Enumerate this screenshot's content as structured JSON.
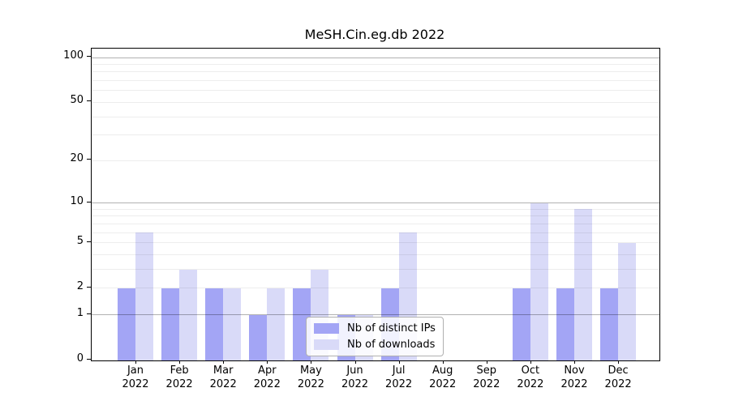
{
  "chart_data": {
    "type": "bar",
    "title": "MeSH.Cin.eg.db 2022",
    "categories": [
      "Jan",
      "Feb",
      "Mar",
      "Apr",
      "May",
      "Jun",
      "Jul",
      "Aug",
      "Sep",
      "Oct",
      "Nov",
      "Dec"
    ],
    "x_tick_year": "2022",
    "series": [
      {
        "name": "Nb of distinct IPs",
        "color": "#a3a5f5",
        "values": [
          2,
          2,
          2,
          1,
          2,
          1,
          2,
          0,
          0,
          2,
          2,
          2
        ]
      },
      {
        "name": "Nb of downloads",
        "color": "#d9daf8",
        "values": [
          6,
          3,
          2,
          2,
          3,
          1,
          6,
          0,
          0,
          10,
          9,
          5
        ]
      }
    ],
    "xlabel": "",
    "ylabel": "",
    "y_scale": "log1p",
    "y_ticks": [
      0,
      1,
      2,
      5,
      10,
      20,
      50,
      100
    ],
    "y_major_gridlines": [
      1,
      10,
      100
    ],
    "y_minor_gridlines": [
      3,
      4,
      6,
      7,
      8,
      9,
      30,
      40,
      60,
      70,
      80,
      90
    ],
    "ylim": [
      0,
      113
    ],
    "grid": "horizontal",
    "legend_position": "inside-bottom-center"
  },
  "colors": {
    "background": "#ffffff",
    "text": "#000000",
    "frame": "#000000",
    "grid_major": "rgba(0,0,0,0.30)",
    "grid_minor": "rgba(0,0,0,0.07)",
    "legend_border": "#b0b0b0",
    "legend_background": "rgba(255,255,255,0.85)"
  }
}
